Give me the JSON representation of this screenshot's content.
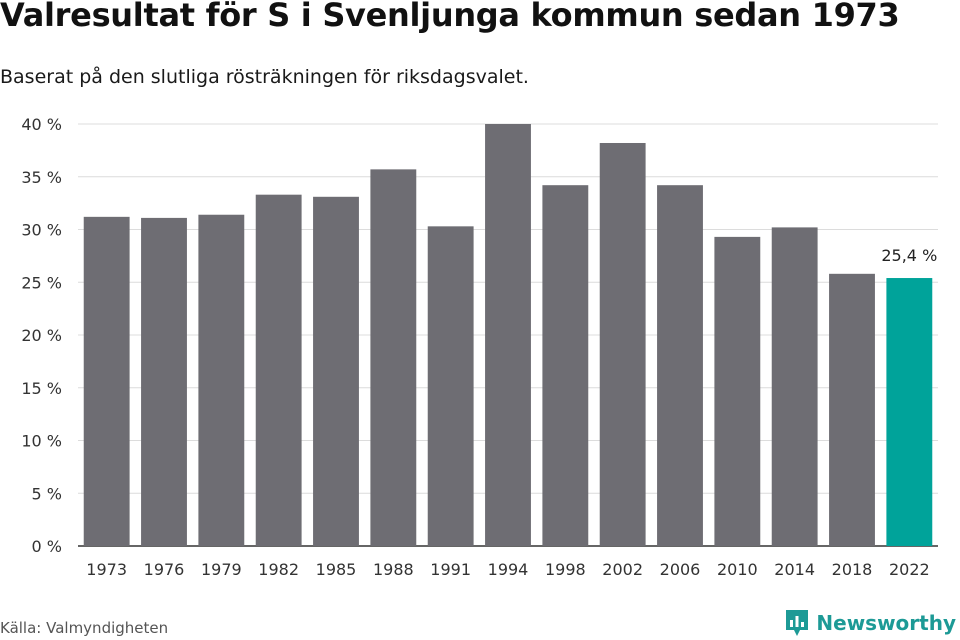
{
  "title": "Valresultat för S i Svenljunga kommun sedan 1973",
  "subtitle": "Baserat på den slutliga rösträkningen för riksdagsvalet.",
  "source": "Källa: Valmyndigheten",
  "brand": {
    "name": "Newsworthy",
    "icon": "newsworthy-logo-icon",
    "color": "#1d9a96"
  },
  "chart_data": {
    "type": "bar",
    "categories": [
      "1973",
      "1976",
      "1979",
      "1982",
      "1985",
      "1988",
      "1991",
      "1994",
      "1998",
      "2002",
      "2006",
      "2010",
      "2014",
      "2018",
      "2022"
    ],
    "values": [
      31.2,
      31.1,
      31.4,
      33.3,
      33.1,
      35.7,
      30.3,
      40.0,
      34.2,
      38.2,
      34.2,
      29.3,
      30.2,
      25.8,
      25.4
    ],
    "ylim": [
      0,
      40
    ],
    "yticks": [
      0,
      5,
      10,
      15,
      20,
      25,
      30,
      35,
      40
    ],
    "ytick_labels": [
      "0 %",
      "5 %",
      "10 %",
      "15 %",
      "20 %",
      "25 %",
      "30 %",
      "35 %",
      "40 %"
    ],
    "xlabel": "",
    "ylabel": "",
    "grid": true,
    "highlight_index": 14,
    "highlight_label": "25,4 %",
    "colors": {
      "bar": "#6e6d73",
      "highlight": "#00a39a",
      "grid": "#dcdcdc",
      "axis": "#333333"
    }
  }
}
